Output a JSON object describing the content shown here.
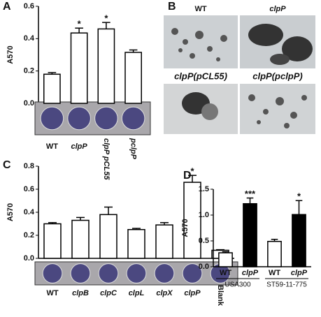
{
  "panel_labels": [
    "A",
    "B",
    "C",
    "D"
  ],
  "images": {
    "labels": [
      "WT",
      "clpP",
      "clpP(pCL55)",
      "clpP(pclpP)"
    ]
  },
  "chart_data": [
    {
      "type": "bar",
      "ylabel": "A570",
      "categories": [
        "WT",
        "clpP",
        "clpP pCL55",
        "pclpP"
      ],
      "values": [
        0.18,
        0.435,
        0.46,
        0.315
      ],
      "errors": [
        0.01,
        0.03,
        0.04,
        0.015
      ],
      "colors": [
        "#ffffff",
        "#ffffff",
        "#ffffff",
        "#ffffff"
      ],
      "annotations": [
        null,
        "*",
        "*",
        null
      ],
      "ylim": [
        0,
        0.6
      ],
      "yticks": [
        {
          "value": 0,
          "label": "0.0"
        },
        0.2,
        0.4,
        0.6
      ]
    },
    {
      "type": "bar",
      "ylabel": "A570",
      "categories": [
        "WT",
        "clpB",
        "clpC",
        "clpL",
        "clpX",
        "clpP",
        "Blank"
      ],
      "values": [
        0.3,
        0.33,
        0.38,
        0.25,
        0.29,
        0.66,
        0.07
      ],
      "errors": [
        0.01,
        0.025,
        0.065,
        0.01,
        0.02,
        0.06,
        0.005
      ],
      "colors": [
        "#ffffff",
        "#ffffff",
        "#ffffff",
        "#ffffff",
        "#ffffff",
        "#ffffff",
        "#ffffff"
      ],
      "annotations": [
        null,
        null,
        null,
        null,
        null,
        "*",
        null
      ],
      "ylim": [
        0,
        0.8
      ],
      "yticks": [
        {
          "value": 0,
          "label": "0.0"
        },
        0.2,
        0.4,
        0.6,
        0.8
      ]
    },
    {
      "type": "bar",
      "ylabel": "A570",
      "categories": [
        "WT",
        "clpP",
        "WT",
        "clpP"
      ],
      "groups": [
        "USA300",
        "ST59-11-775"
      ],
      "values": [
        0.27,
        1.22,
        0.49,
        1.01
      ],
      "errors": [
        0.02,
        0.11,
        0.04,
        0.27
      ],
      "colors": [
        "#ffffff",
        "#000000",
        "#ffffff",
        "#000000"
      ],
      "annotations": [
        null,
        "***",
        null,
        "*"
      ],
      "ylim": [
        0,
        1.5
      ],
      "yticks": [
        {
          "value": 0,
          "label": "0.0"
        },
        0.5,
        {
          "value": 1,
          "label": "1.0"
        },
        1.5
      ]
    }
  ]
}
